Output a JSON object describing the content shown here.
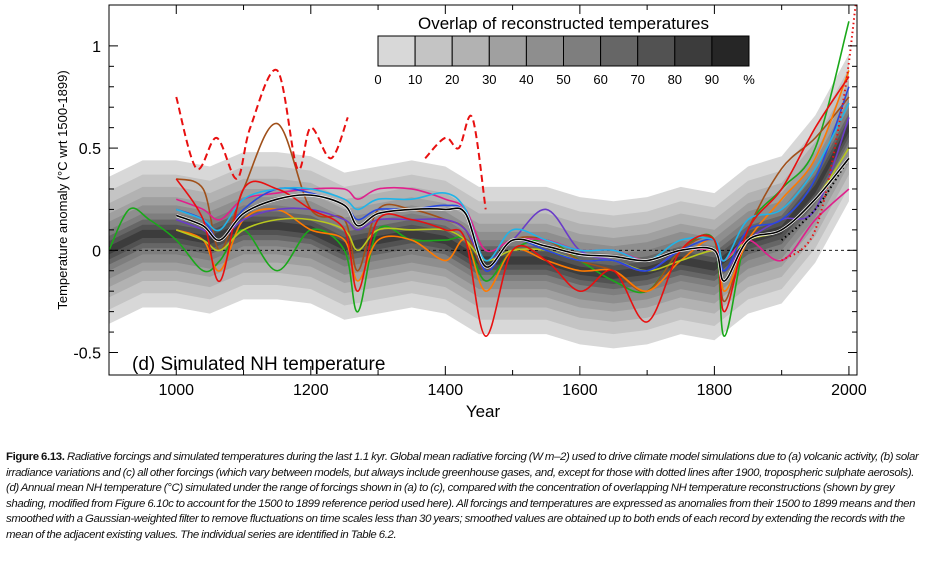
{
  "chart_data": {
    "type": "line",
    "title": "(d) Simulated NH temperature",
    "xlabel": "Year",
    "ylabel": "Temperature anomaly  (°C wrt 1500-1899)",
    "xlim": [
      900,
      2012
    ],
    "ylim": [
      -0.61,
      1.2
    ],
    "xticks": [
      1000,
      1200,
      1400,
      1600,
      1800,
      2000
    ],
    "yticks": [
      -0.5,
      0,
      0.5,
      1
    ],
    "ytick_labels": [
      "-0.5",
      "0",
      "0.5",
      "1"
    ],
    "zero_line": true,
    "legend": {
      "title": "Overlap of reconstructed temperatures",
      "placement": "top-center",
      "labels": [
        "0",
        "10",
        "20",
        "30",
        "40",
        "50",
        "60",
        "70",
        "80",
        "90",
        "%"
      ],
      "colors": [
        "#d8d8d8",
        "#c4c4c4",
        "#b2b2b2",
        "#a0a0a0",
        "#8e8e8e",
        "#7e7e7e",
        "#666666",
        "#525252",
        "#3c3c3c",
        "#262626"
      ]
    },
    "shading": {
      "x": [
        900,
        950,
        1000,
        1050,
        1100,
        1150,
        1200,
        1250,
        1300,
        1350,
        1400,
        1450,
        1500,
        1550,
        1600,
        1650,
        1700,
        1750,
        1800,
        1850,
        1900,
        1950,
        2000
      ],
      "center": [
        0.0,
        0.08,
        0.08,
        0.05,
        0.12,
        0.12,
        0.1,
        0.02,
        0.05,
        0.08,
        0.05,
        -0.05,
        -0.05,
        -0.05,
        -0.1,
        -0.12,
        -0.1,
        -0.05,
        -0.08,
        0.05,
        0.1,
        0.3,
        0.6
      ],
      "levels": [
        {
          "overlap_pct": 10,
          "half_width": 0.36,
          "color": "#d8d8d8"
        },
        {
          "overlap_pct": 20,
          "half_width": 0.29,
          "color": "#c4c4c4"
        },
        {
          "overlap_pct": 30,
          "half_width": 0.23,
          "color": "#b2b2b2"
        },
        {
          "overlap_pct": 40,
          "half_width": 0.18,
          "color": "#a0a0a0"
        },
        {
          "overlap_pct": 50,
          "half_width": 0.14,
          "color": "#8e8e8e"
        },
        {
          "overlap_pct": 60,
          "half_width": 0.1,
          "color": "#7e7e7e"
        },
        {
          "overlap_pct": 70,
          "half_width": 0.07,
          "color": "#666666"
        },
        {
          "overlap_pct": 80,
          "half_width": 0.045,
          "color": "#525252"
        },
        {
          "overlap_pct": 90,
          "half_width": 0.02,
          "color": "#3c3c3c"
        }
      ]
    },
    "x": [
      1000,
      1040,
      1065,
      1100,
      1150,
      1200,
      1250,
      1270,
      1300,
      1350,
      1400,
      1430,
      1460,
      1500,
      1550,
      1600,
      1650,
      1700,
      1750,
      1800,
      1815,
      1850,
      1900,
      1950,
      2000
    ],
    "series": [
      {
        "name": "green",
        "color": "#1aa81a",
        "style": "solid",
        "x": [
          900,
          930,
          960,
          1000,
          1040,
          1065,
          1100,
          1150,
          1200,
          1250,
          1270,
          1300,
          1350,
          1400,
          1430,
          1460,
          1500,
          1550,
          1600,
          1650,
          1700,
          1750,
          1800,
          1815,
          1850,
          1900,
          1950,
          2000
        ],
        "values": [
          0.0,
          0.2,
          0.15,
          0.05,
          -0.1,
          -0.05,
          0.1,
          -0.1,
          0.1,
          0.0,
          -0.3,
          0.1,
          0.05,
          0.05,
          0.05,
          -0.15,
          0.0,
          0.05,
          -0.05,
          -0.15,
          -0.2,
          0.0,
          0.05,
          -0.42,
          0.1,
          0.3,
          0.5,
          1.12
        ]
      },
      {
        "name": "brown",
        "color": "#a0501a",
        "style": "solid",
        "values": [
          0.35,
          0.3,
          0.0,
          0.3,
          0.62,
          0.2,
          0.15,
          -0.1,
          0.2,
          0.2,
          0.15,
          0.1,
          -0.1,
          0.05,
          0.05,
          -0.05,
          -0.1,
          -0.2,
          0.0,
          0.05,
          -0.25,
          0.1,
          0.4,
          0.55,
          0.75
        ]
      },
      {
        "name": "orange",
        "color": "#ff7a00",
        "style": "solid",
        "values": [
          0.1,
          0.05,
          -0.1,
          0.15,
          0.2,
          0.1,
          0.05,
          -0.15,
          0.05,
          0.05,
          -0.05,
          0.05,
          -0.2,
          0.0,
          -0.05,
          -0.1,
          -0.1,
          -0.2,
          -0.05,
          0.05,
          -0.2,
          0.05,
          0.25,
          0.45,
          0.88
        ]
      },
      {
        "name": "purple",
        "color": "#6a3cc8",
        "style": "solid",
        "values": [
          0.15,
          0.1,
          0.05,
          0.15,
          0.2,
          0.2,
          0.15,
          0.1,
          0.15,
          0.15,
          0.15,
          0.1,
          -0.05,
          0.05,
          0.2,
          0.0,
          -0.05,
          -0.1,
          0.0,
          0.0,
          -0.1,
          0.05,
          0.15,
          0.2,
          0.65
        ]
      },
      {
        "name": "yellow-green",
        "color": "#b8c81e",
        "style": "solid",
        "values": [
          0.1,
          0.05,
          0.0,
          0.1,
          0.15,
          0.15,
          0.1,
          0.0,
          0.1,
          0.1,
          0.1,
          0.05,
          -0.05,
          0.0,
          0.0,
          -0.05,
          -0.05,
          -0.1,
          -0.05,
          0.0,
          -0.05,
          0.05,
          0.1,
          0.25,
          0.5
        ]
      },
      {
        "name": "magenta",
        "color": "#e0208c",
        "style": "solid",
        "values": [
          0.25,
          0.2,
          0.15,
          0.25,
          0.28,
          0.3,
          0.3,
          0.25,
          0.3,
          0.3,
          0.25,
          0.2,
          0.0,
          0.05,
          0.05,
          0.0,
          0.0,
          -0.05,
          0.0,
          0.0,
          -0.05,
          0.05,
          -0.05,
          0.15,
          0.3
        ]
      },
      {
        "name": "blue",
        "color": "#2848e0",
        "style": "solid",
        "values": [
          0.2,
          0.15,
          0.05,
          0.2,
          0.3,
          0.28,
          0.22,
          0.15,
          0.2,
          0.2,
          0.22,
          0.18,
          -0.1,
          0.05,
          0.0,
          -0.05,
          -0.05,
          -0.1,
          0.0,
          0.05,
          -0.1,
          0.1,
          0.15,
          0.35,
          0.8
        ]
      },
      {
        "name": "cyan",
        "color": "#20b4e8",
        "style": "solid",
        "values": [
          0.2,
          0.15,
          0.1,
          0.25,
          0.3,
          0.3,
          0.25,
          0.2,
          0.25,
          0.25,
          0.28,
          0.2,
          -0.05,
          0.1,
          0.05,
          0.0,
          0.0,
          -0.05,
          0.05,
          0.05,
          -0.05,
          0.15,
          0.2,
          0.4,
          0.72
        ]
      },
      {
        "name": "red",
        "color": "#e81010",
        "style": "solid",
        "values": [
          0.35,
          0.15,
          -0.15,
          0.3,
          0.3,
          0.2,
          0.1,
          -0.2,
          0.15,
          0.15,
          0.1,
          0.05,
          -0.42,
          0.0,
          -0.05,
          -0.2,
          -0.1,
          -0.35,
          0.0,
          0.05,
          -0.3,
          0.1,
          0.3,
          0.6,
          0.85
        ]
      },
      {
        "name": "red-dashed-early",
        "color": "#e81010",
        "style": "dashed",
        "x": [
          1000,
          1030,
          1060,
          1090,
          1110,
          1150,
          1180,
          1200,
          1230,
          1255
        ],
        "values": [
          0.75,
          0.4,
          0.55,
          0.35,
          0.6,
          0.88,
          0.4,
          0.6,
          0.45,
          0.65
        ]
      },
      {
        "name": "red-dashed-mid",
        "color": "#e81010",
        "style": "dashed",
        "x": [
          1370,
          1400,
          1420,
          1440,
          1460
        ],
        "values": [
          0.45,
          0.55,
          0.5,
          0.65,
          0.2
        ]
      },
      {
        "name": "red-dotted-no-sulphate",
        "color": "#e81010",
        "style": "dotted",
        "x": [
          1900,
          1950,
          1990,
          2010
        ],
        "values": [
          -0.05,
          0.1,
          0.7,
          1.2
        ]
      },
      {
        "name": "black-dotted-no-sulphate",
        "color": "#000000",
        "style": "dotted",
        "x": [
          1900,
          1950,
          2000
        ],
        "values": [
          0.05,
          0.2,
          0.45
        ]
      },
      {
        "name": "black",
        "color": "#000000",
        "style": "solid",
        "values": [
          0.17,
          0.12,
          0.05,
          0.18,
          0.25,
          0.27,
          0.22,
          0.12,
          0.18,
          0.2,
          0.2,
          0.18,
          -0.08,
          0.05,
          0.02,
          -0.02,
          -0.03,
          -0.05,
          0.0,
          0.0,
          -0.15,
          0.05,
          0.1,
          0.25,
          0.45
        ]
      }
    ]
  },
  "caption": {
    "label": "Figure 6.13.",
    "text": "Radiative forcings and simulated temperatures during the last 1.1 kyr. Global mean radiative forcing (W m–2) used to drive climate model simulations due to (a) volcanic activity, (b) solar irradiance variations and (c) all other forcings (which vary between models, but always include greenhouse gases, and, except for those with dotted lines after 1900, tropospheric sulphate aerosols). (d) Annual mean NH temperature (°C) simulated under the range of forcings shown in (a) to (c), compared with the concentration of overlapping NH temperature reconstructions (shown by grey shading, modified from Figure 6.10c to account for the 1500 to 1899 reference period used here). All forcings and temperatures are expressed as anomalies from their 1500 to 1899 means and then smoothed with a Gaussian-weighted filter to remove fluctuations on time scales less than 30 years; smoothed values are obtained up to both ends of each record by extending the records with the mean of the adjacent existing values. The individual series are identified in Table 6.2."
  }
}
